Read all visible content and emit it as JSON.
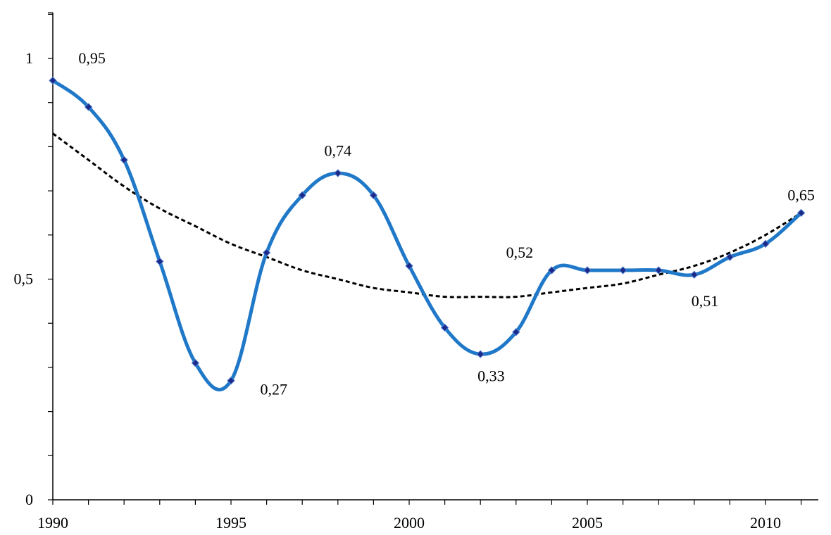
{
  "chart_data": {
    "type": "line",
    "title": "",
    "xlabel": "",
    "ylabel": "",
    "xlim": [
      1990,
      2012
    ],
    "ylim": [
      0,
      1.1
    ],
    "x_ticks": [
      1990,
      1995,
      2000,
      2005,
      2010
    ],
    "x_tick_labels": [
      "1990",
      "1995",
      "2000",
      "2005",
      "2010"
    ],
    "y_ticks": [
      0,
      0.5,
      1
    ],
    "y_tick_labels": [
      "0",
      "0,5",
      "1"
    ],
    "y_minor_step": 0.1,
    "grid": false,
    "legend": "none",
    "series": [
      {
        "style": "solid-smooth-with-diamond-markers",
        "color": "#1f78c8",
        "marker_color": "#1c2a8a",
        "x": [
          1990,
          1991,
          1992,
          1993,
          1994,
          1995,
          1996,
          1997,
          1998,
          1999,
          2000,
          2001,
          2002,
          2003,
          2004,
          2005,
          2006,
          2007,
          2008,
          2009,
          2010,
          2011
        ],
        "y": [
          0.95,
          0.89,
          0.77,
          0.54,
          0.31,
          0.27,
          0.56,
          0.69,
          0.74,
          0.69,
          0.53,
          0.39,
          0.33,
          0.38,
          0.52,
          0.52,
          0.52,
          0.52,
          0.51,
          0.55,
          0.58,
          0.65
        ]
      },
      {
        "style": "dashed-trend",
        "color": "#000000",
        "x": [
          1990,
          1991,
          1992,
          1993,
          1994,
          1995,
          1996,
          1997,
          1998,
          1999,
          2000,
          2001,
          2002,
          2003,
          2004,
          2005,
          2006,
          2007,
          2008,
          2009,
          2010,
          2011
        ],
        "y": [
          0.83,
          0.77,
          0.71,
          0.66,
          0.62,
          0.58,
          0.55,
          0.52,
          0.5,
          0.48,
          0.47,
          0.46,
          0.46,
          0.46,
          0.47,
          0.48,
          0.49,
          0.51,
          0.53,
          0.56,
          0.6,
          0.65
        ]
      }
    ],
    "annotations": [
      {
        "text": "0,95",
        "x": 1991.1,
        "y": 1.0
      },
      {
        "text": "0,27",
        "x": 1996.2,
        "y": 0.25
      },
      {
        "text": "0,74",
        "x": 1998.0,
        "y": 0.79
      },
      {
        "text": "0,52",
        "x": 2003.1,
        "y": 0.56
      },
      {
        "text": "0,33",
        "x": 2002.3,
        "y": 0.28
      },
      {
        "text": "0,51",
        "x": 2008.3,
        "y": 0.45
      },
      {
        "text": "0,65",
        "x": 2011.0,
        "y": 0.69
      }
    ]
  }
}
